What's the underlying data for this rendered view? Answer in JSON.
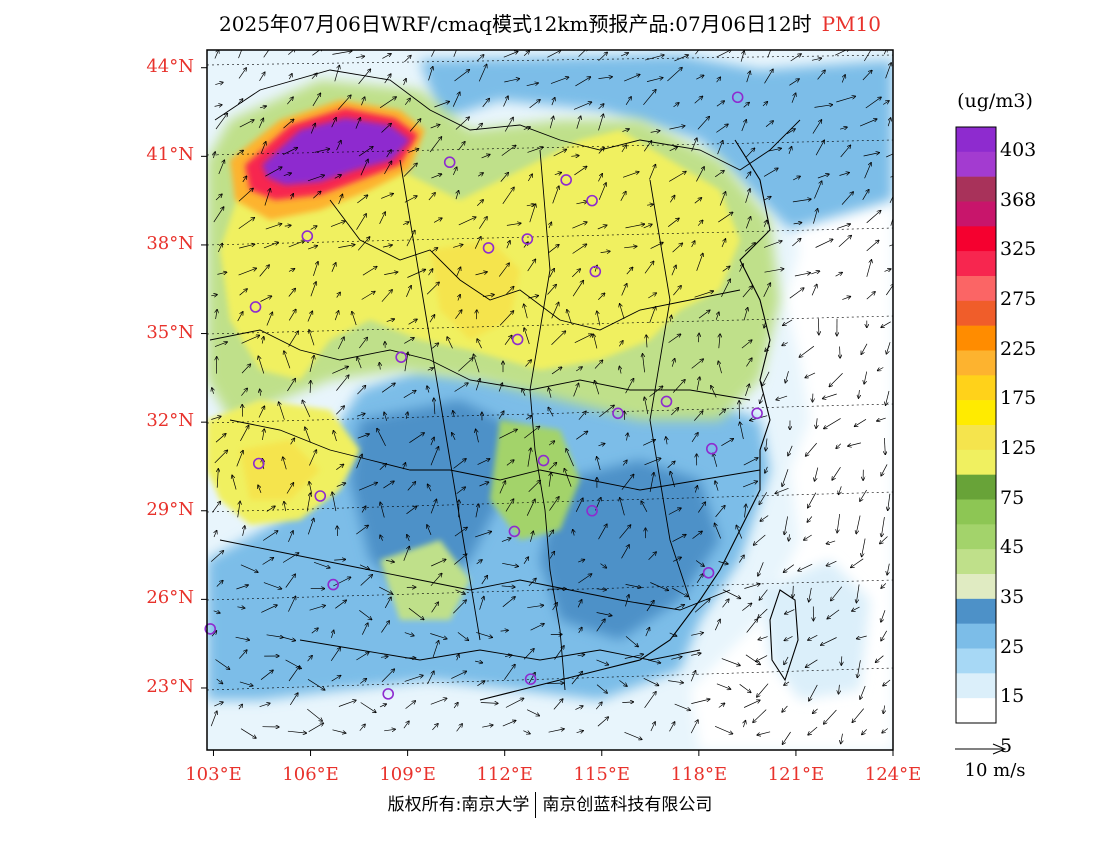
{
  "title": {
    "main": "2025年07月06日WRF/cmaq模式12km预报产品:07月06日12时",
    "variable": "PM10"
  },
  "map": {
    "lat_labels": [
      "44°N",
      "41°N",
      "38°N",
      "35°N",
      "32°N",
      "29°N",
      "26°N",
      "23°N"
    ],
    "lat_values": [
      44,
      41,
      38,
      35,
      32,
      29,
      26,
      23
    ],
    "lon_labels": [
      "103°E",
      "106°E",
      "109°E",
      "112°E",
      "115°E",
      "118°E",
      "121°E",
      "124°E"
    ],
    "lon_values": [
      103,
      106,
      109,
      112,
      115,
      118,
      121,
      124
    ],
    "lat_range": [
      20.9,
      44.6
    ],
    "lon_range": [
      102.8,
      124.0
    ],
    "stations": [
      {
        "lon": 119.2,
        "lat": 43.0
      },
      {
        "lon": 110.3,
        "lat": 40.8
      },
      {
        "lon": 113.9,
        "lat": 40.2
      },
      {
        "lon": 114.7,
        "lat": 39.5
      },
      {
        "lon": 105.9,
        "lat": 38.3
      },
      {
        "lon": 111.5,
        "lat": 37.9
      },
      {
        "lon": 112.7,
        "lat": 38.2
      },
      {
        "lon": 114.8,
        "lat": 37.1
      },
      {
        "lon": 104.3,
        "lat": 35.9
      },
      {
        "lon": 112.4,
        "lat": 34.8
      },
      {
        "lon": 108.8,
        "lat": 34.2
      },
      {
        "lon": 117.0,
        "lat": 32.7
      },
      {
        "lon": 115.5,
        "lat": 32.3
      },
      {
        "lon": 119.8,
        "lat": 32.3
      },
      {
        "lon": 118.4,
        "lat": 31.1
      },
      {
        "lon": 104.4,
        "lat": 30.6
      },
      {
        "lon": 113.2,
        "lat": 30.7
      },
      {
        "lon": 106.3,
        "lat": 29.5
      },
      {
        "lon": 114.7,
        "lat": 29.0
      },
      {
        "lon": 112.3,
        "lat": 28.3
      },
      {
        "lon": 118.3,
        "lat": 26.9
      },
      {
        "lon": 106.7,
        "lat": 26.5
      },
      {
        "lon": 102.9,
        "lat": 25.0
      },
      {
        "lon": 108.4,
        "lat": 22.8
      },
      {
        "lon": 112.8,
        "lat": 23.3
      }
    ]
  },
  "legend": {
    "unit": "(ug/m3)",
    "colors": [
      "#ffffff",
      "#dbeffa",
      "#a7d8f5",
      "#7cbde8",
      "#4d91c8",
      "#e0ebc2",
      "#bfe08a",
      "#a3d36b",
      "#8dc654",
      "#68a338",
      "#f0f060",
      "#f5e44d",
      "#ffeb00",
      "#ffd21a",
      "#fdb32f",
      "#ff8c00",
      "#f05d2a",
      "#fb6565",
      "#f7264f",
      "#f5002f",
      "#c8156b",
      "#a8325a",
      "#a33bd0",
      "#8e2bcf"
    ],
    "labels": [
      "5",
      "15",
      "25",
      "35",
      "45",
      "75",
      "125",
      "175",
      "225",
      "275",
      "325",
      "368",
      "403"
    ],
    "reference_vector": "10 m/s"
  },
  "footer": {
    "left": "版权所有:南京大学",
    "right": "南京创蓝科技有限公司"
  }
}
